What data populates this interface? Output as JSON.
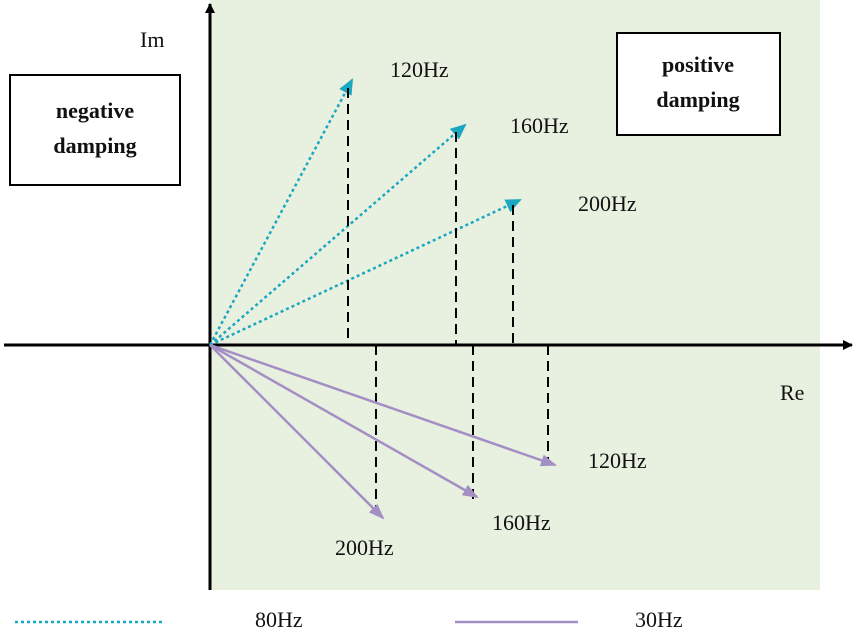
{
  "axes": {
    "y_label": "Im",
    "x_label": "Re"
  },
  "regions": {
    "negative": [
      "negative",
      "damping"
    ],
    "positive": [
      "positive",
      "damping"
    ]
  },
  "upper_arrows": [
    {
      "label": "120Hz"
    },
    {
      "label": "160Hz"
    },
    {
      "label": "200Hz"
    }
  ],
  "lower_arrows": [
    {
      "label": "120Hz"
    },
    {
      "label": "160Hz"
    },
    {
      "label": "200Hz"
    }
  ],
  "legend": [
    {
      "label": "80Hz"
    },
    {
      "label": "30Hz"
    }
  ]
}
